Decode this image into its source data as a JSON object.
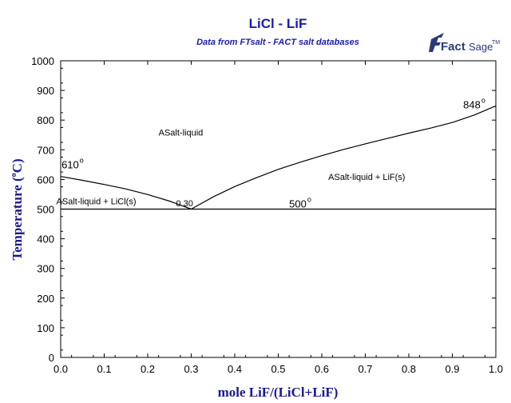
{
  "chart_data": {
    "type": "line",
    "title": "LiCl - LiF",
    "subtitle": "Data from FTsalt - FACT salt databases",
    "xlabel": "mole LiF/(LiCl+LiF)",
    "ylabel": "Temperature (°C)",
    "xlim": [
      0.0,
      1.0
    ],
    "ylim": [
      0,
      1000
    ],
    "x_ticks": [
      "0.0",
      "0.1",
      "0.2",
      "0.3",
      "0.4",
      "0.5",
      "0.6",
      "0.7",
      "0.8",
      "0.9",
      "1.0"
    ],
    "y_ticks": [
      "0",
      "100",
      "200",
      "300",
      "400",
      "500",
      "600",
      "700",
      "800",
      "900",
      "1000"
    ],
    "x_tick_values": [
      0.0,
      0.1,
      0.2,
      0.3,
      0.4,
      0.5,
      0.6,
      0.7,
      0.8,
      0.9,
      1.0
    ],
    "y_tick_values": [
      0,
      100,
      200,
      300,
      400,
      500,
      600,
      700,
      800,
      900,
      1000
    ],
    "series": [
      {
        "name": "LiCl liquidus",
        "x": [
          0.0,
          0.05,
          0.1,
          0.15,
          0.2,
          0.25,
          0.3
        ],
        "y": [
          610,
          597,
          583,
          568,
          549,
          527,
          500
        ]
      },
      {
        "name": "LiF liquidus",
        "x": [
          0.3,
          0.35,
          0.4,
          0.45,
          0.5,
          0.55,
          0.6,
          0.65,
          0.7,
          0.75,
          0.8,
          0.85,
          0.9,
          0.95,
          1.0
        ],
        "y": [
          500,
          541,
          576,
          606,
          634,
          658,
          680,
          701,
          720,
          738,
          756,
          773,
          792,
          817,
          848
        ]
      },
      {
        "name": "eutectic",
        "x": [
          0.0,
          1.0
        ],
        "y": [
          500,
          500
        ]
      }
    ],
    "regions": [
      {
        "text": "ASalt-liquid",
        "x": 0.225,
        "y": 748
      },
      {
        "text": "ASalt-liquid + LiF(s)",
        "x": 0.615,
        "y": 598
      },
      {
        "text": "ASalt-liquid + LiCl(s)",
        "x": -0.01,
        "y": 516
      }
    ],
    "annotations": [
      {
        "text": "610",
        "x": 0.002,
        "y": 637
      },
      {
        "text": "848",
        "x": 0.925,
        "y": 840
      },
      {
        "text": "500",
        "x": 0.525,
        "y": 505
      },
      {
        "text": "0.30",
        "x": 0.265,
        "y": 510
      }
    ]
  },
  "header": {
    "title": "LiCl - LiF",
    "subtitle": "Data from FTsalt - FACT salt databases"
  },
  "axes": {
    "x_title": "mole LiF/(LiCl+LiF)",
    "y_title_main": "Temperature (",
    "y_title_unit": "C)",
    "degree_symbol": "o"
  },
  "logo": {
    "brand_main": "Fact",
    "brand_sub": "Sage",
    "trademark": "TM"
  },
  "colors": {
    "title": "#1a1ab0",
    "axis_title": "#1a1a8c",
    "line": "#000000",
    "logo": "#2a3a7c"
  }
}
